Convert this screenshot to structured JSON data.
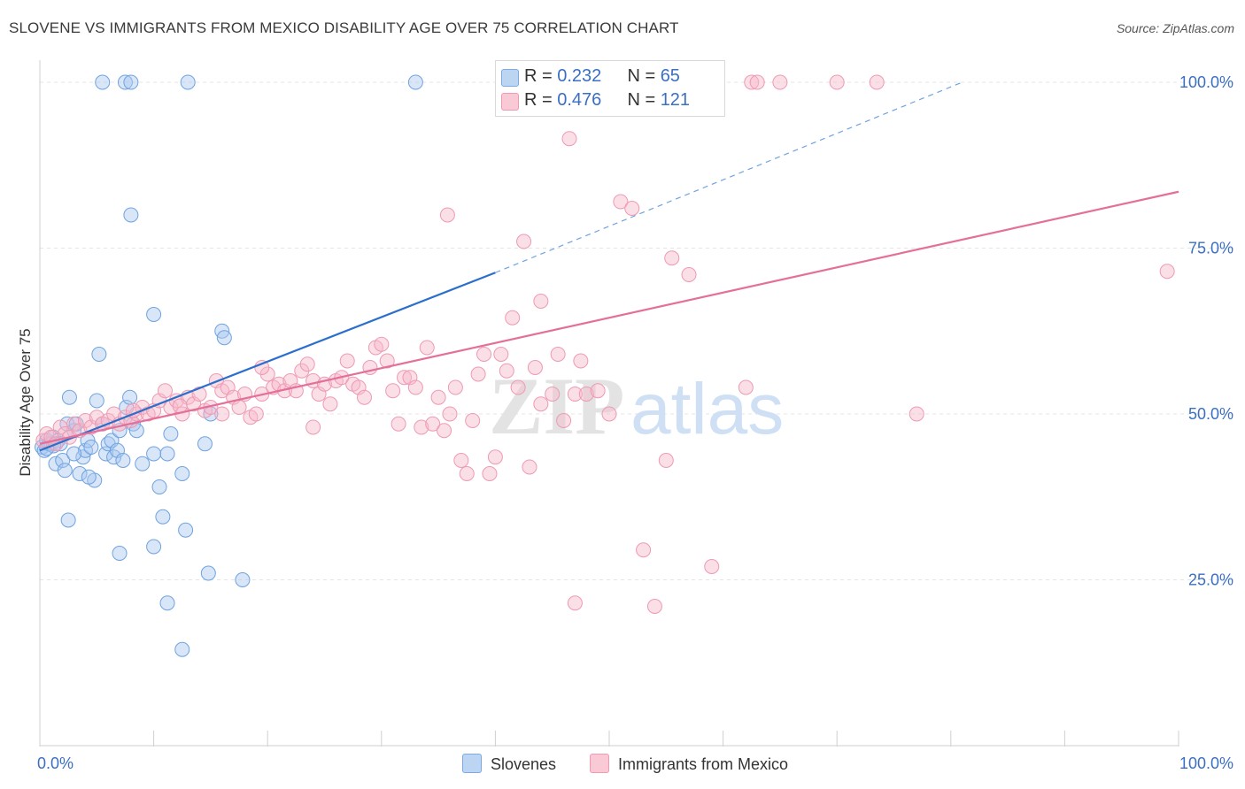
{
  "header": {
    "title": "SLOVENE VS IMMIGRANTS FROM MEXICO DISABILITY AGE OVER 75 CORRELATION CHART",
    "source": "Source: ZipAtlas.com"
  },
  "watermark": {
    "zip": "ZIP",
    "atlas": "atlas"
  },
  "stats": [
    {
      "r_label": "R = ",
      "r_value": "0.232",
      "n_label": "N = ",
      "n_value": "65",
      "color": "#a8c8f0"
    },
    {
      "r_label": "R = ",
      "r_value": "0.476",
      "n_label": "N = ",
      "n_value": "121",
      "color": "#f7b8c9"
    }
  ],
  "legend": [
    {
      "label": "Slovenes",
      "color": "#a8c8f0"
    },
    {
      "label": "Immigrants from Mexico",
      "color": "#f7b8c9"
    }
  ],
  "chart_data": {
    "type": "scatter",
    "title": "SLOVENE VS IMMIGRANTS FROM MEXICO DISABILITY AGE OVER 75 CORRELATION CHART",
    "xlabel": "",
    "ylabel": "Disability Age Over 75",
    "x_tick_labels": [
      "0.0%",
      "100.0%"
    ],
    "y_tick_labels": [
      "25.0%",
      "50.0%",
      "75.0%",
      "100.0%"
    ],
    "xlim": [
      0,
      100
    ],
    "ylim": [
      0,
      102
    ],
    "grid": true,
    "legend_position": "bottom-center",
    "series": [
      {
        "name": "Slovenes",
        "color": "#6fa3e0",
        "trend": {
          "x0": 0,
          "y0": 44.5,
          "x1": 40,
          "y1": 71.3,
          "dashed_to_x": 81,
          "dashed_to_y": 100
        },
        "points": [
          [
            0.2,
            45
          ],
          [
            0.4,
            44.5
          ],
          [
            0.6,
            46
          ],
          [
            0.8,
            45.5
          ],
          [
            1,
            45.5
          ],
          [
            1.2,
            46.5
          ],
          [
            1.4,
            42.5
          ],
          [
            1.6,
            46
          ],
          [
            1.8,
            45.5
          ],
          [
            2,
            43
          ],
          [
            2.2,
            41.5
          ],
          [
            2.4,
            48.5
          ],
          [
            2.6,
            52.5
          ],
          [
            3,
            47.5
          ],
          [
            3.2,
            48.5
          ],
          [
            3.5,
            41
          ],
          [
            3.8,
            43.5
          ],
          [
            4,
            44.5
          ],
          [
            4.2,
            46
          ],
          [
            4.5,
            45
          ],
          [
            4.8,
            40
          ],
          [
            5,
            52
          ],
          [
            5.2,
            59
          ],
          [
            5.5,
            48.5
          ],
          [
            5.8,
            44
          ],
          [
            6,
            45.5
          ],
          [
            6.3,
            46
          ],
          [
            6.5,
            43.5
          ],
          [
            6.8,
            44.5
          ],
          [
            7,
            47.5
          ],
          [
            7.3,
            43
          ],
          [
            7.6,
            51
          ],
          [
            7.9,
            52.5
          ],
          [
            8.2,
            48.5
          ],
          [
            8.5,
            47.5
          ],
          [
            5.5,
            100
          ],
          [
            7.5,
            100
          ],
          [
            8,
            100
          ],
          [
            13,
            100
          ],
          [
            33,
            100
          ],
          [
            8,
            80
          ],
          [
            10,
            65
          ],
          [
            16,
            62.5
          ],
          [
            16.2,
            61.5
          ],
          [
            10,
            44
          ],
          [
            9,
            42.5
          ],
          [
            10.5,
            39
          ],
          [
            11.2,
            44
          ],
          [
            11.5,
            47
          ],
          [
            15,
            50
          ],
          [
            14.5,
            45.5
          ],
          [
            12.5,
            41
          ],
          [
            2.5,
            34
          ],
          [
            7,
            29
          ],
          [
            10,
            30
          ],
          [
            10.8,
            34.5
          ],
          [
            12.8,
            32.5
          ],
          [
            14.8,
            26
          ],
          [
            17.8,
            25
          ],
          [
            11.2,
            21.5
          ],
          [
            12.5,
            14.5
          ],
          [
            3,
            44
          ],
          [
            4.3,
            40.5
          ],
          [
            1.2,
            45.2
          ],
          [
            0.6,
            44.8
          ]
        ]
      },
      {
        "name": "Immigrants from Mexico",
        "color": "#ef8fab",
        "trend": {
          "x0": 0,
          "y0": 45.5,
          "x1": 100,
          "y1": 83.5
        },
        "points": [
          [
            0.3,
            46
          ],
          [
            0.6,
            47
          ],
          [
            1,
            46.5
          ],
          [
            1.4,
            45.5
          ],
          [
            1.8,
            48
          ],
          [
            2.2,
            47
          ],
          [
            2.6,
            46.5
          ],
          [
            3,
            48.5
          ],
          [
            3.5,
            47.5
          ],
          [
            4,
            49
          ],
          [
            4.5,
            48
          ],
          [
            5,
            49.5
          ],
          [
            5.5,
            48.5
          ],
          [
            6,
            49
          ],
          [
            6.5,
            50
          ],
          [
            7,
            48.5
          ],
          [
            7.5,
            49.5
          ],
          [
            8,
            49
          ],
          [
            8.5,
            50
          ],
          [
            9,
            51
          ],
          [
            9.5,
            50
          ],
          [
            10,
            50.5
          ],
          [
            10.5,
            52
          ],
          [
            11,
            53.5
          ],
          [
            11.5,
            51
          ],
          [
            12,
            52
          ],
          [
            12.5,
            50
          ],
          [
            13,
            52.5
          ],
          [
            13.5,
            51.5
          ],
          [
            14,
            53
          ],
          [
            14.5,
            50.5
          ],
          [
            15,
            51
          ],
          [
            15.5,
            55
          ],
          [
            16,
            53.5
          ],
          [
            16.5,
            54
          ],
          [
            17,
            52.5
          ],
          [
            17.5,
            51
          ],
          [
            18,
            53
          ],
          [
            18.5,
            49.5
          ],
          [
            19,
            50
          ],
          [
            19.5,
            53
          ],
          [
            20,
            56
          ],
          [
            20.5,
            54
          ],
          [
            21,
            54.5
          ],
          [
            21.5,
            53.5
          ],
          [
            22,
            55
          ],
          [
            22.5,
            53.5
          ],
          [
            23,
            56.5
          ],
          [
            23.5,
            57.5
          ],
          [
            24,
            55
          ],
          [
            24.5,
            53
          ],
          [
            25,
            54.5
          ],
          [
            25.5,
            51.5
          ],
          [
            26,
            55
          ],
          [
            26.5,
            55.5
          ],
          [
            27,
            58
          ],
          [
            27.5,
            54.5
          ],
          [
            28,
            54
          ],
          [
            28.5,
            52.5
          ],
          [
            29,
            57
          ],
          [
            29.5,
            60
          ],
          [
            30,
            60.5
          ],
          [
            30.5,
            58
          ],
          [
            31,
            53.5
          ],
          [
            31.5,
            48.5
          ],
          [
            32,
            55.5
          ],
          [
            32.5,
            55.5
          ],
          [
            33,
            54
          ],
          [
            33.5,
            48
          ],
          [
            34,
            60
          ],
          [
            34.5,
            48.5
          ],
          [
            35,
            52.5
          ],
          [
            35.5,
            47.5
          ],
          [
            36,
            50
          ],
          [
            37,
            43
          ],
          [
            37.5,
            41
          ],
          [
            38,
            49
          ],
          [
            39,
            59
          ],
          [
            39.5,
            41
          ],
          [
            40,
            43.5
          ],
          [
            40.5,
            59
          ],
          [
            41,
            56.5
          ],
          [
            42,
            54
          ],
          [
            43,
            42
          ],
          [
            43.5,
            57
          ],
          [
            44,
            51.5
          ],
          [
            45,
            53
          ],
          [
            45.5,
            59
          ],
          [
            46,
            49
          ],
          [
            47,
            53
          ],
          [
            47.5,
            58
          ],
          [
            48,
            53
          ],
          [
            49,
            53.5
          ],
          [
            50,
            50
          ],
          [
            51,
            82
          ],
          [
            52,
            81
          ],
          [
            53,
            29.5
          ],
          [
            54,
            21
          ],
          [
            55,
            43
          ],
          [
            55.5,
            73.5
          ],
          [
            57,
            71
          ],
          [
            59,
            27
          ],
          [
            62,
            54
          ],
          [
            62.5,
            100
          ],
          [
            63,
            100
          ],
          [
            65,
            100
          ],
          [
            70,
            100
          ],
          [
            73.5,
            100
          ],
          [
            35.8,
            80
          ],
          [
            41.5,
            64.5
          ],
          [
            42.5,
            76
          ],
          [
            44,
            67
          ],
          [
            46.5,
            91.5
          ],
          [
            47,
            21.5
          ],
          [
            77,
            50
          ],
          [
            99,
            71.5
          ],
          [
            16,
            50
          ],
          [
            24,
            48
          ],
          [
            38.5,
            56
          ],
          [
            36.5,
            54
          ],
          [
            19.5,
            57
          ],
          [
            12.3,
            51.2
          ],
          [
            8.2,
            50.5
          ]
        ]
      }
    ]
  }
}
